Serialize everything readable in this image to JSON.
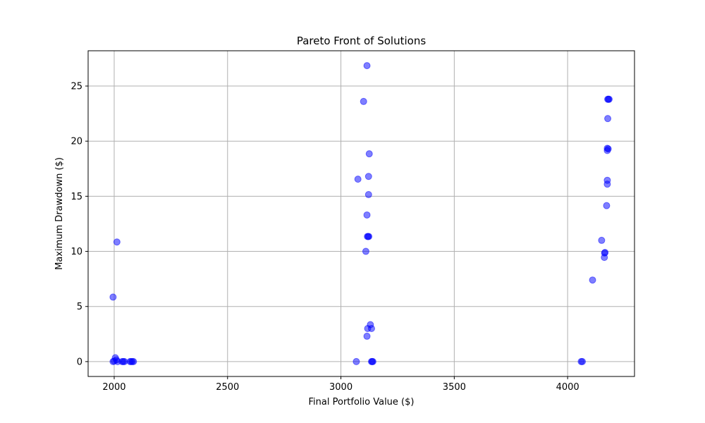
{
  "chart_data": {
    "type": "scatter",
    "title": "Pareto Front of Solutions",
    "xlabel": "Final Portfolio Value ($)",
    "ylabel": "Maximum Drawdown ($)",
    "xlim": [
      1885,
      4295
    ],
    "ylim": [
      -1.35,
      28.2
    ],
    "xticks": [
      2000,
      2500,
      3000,
      3500,
      4000
    ],
    "yticks": [
      0,
      5,
      10,
      15,
      20,
      25
    ],
    "grid": true,
    "point_color": "#0000ff",
    "point_alpha": 0.5,
    "series": [
      {
        "points": [
          [
            1995,
            5.85
          ],
          [
            2012,
            10.85
          ],
          [
            1995,
            0.0
          ],
          [
            2000,
            0.05
          ],
          [
            2005,
            0.35
          ],
          [
            2010,
            0.15
          ],
          [
            2015,
            0.0
          ],
          [
            2035,
            0.0
          ],
          [
            2040,
            0.0
          ],
          [
            2045,
            0.0
          ],
          [
            2070,
            0.0
          ],
          [
            2075,
            0.0
          ],
          [
            2080,
            0.0
          ],
          [
            2085,
            0.0
          ],
          [
            3115,
            26.85
          ],
          [
            3100,
            23.6
          ],
          [
            3125,
            18.85
          ],
          [
            3075,
            16.55
          ],
          [
            3122,
            16.8
          ],
          [
            3122,
            15.15
          ],
          [
            3115,
            13.3
          ],
          [
            3117,
            11.35
          ],
          [
            3120,
            11.35
          ],
          [
            3123,
            11.35
          ],
          [
            3110,
            10.0
          ],
          [
            3130,
            3.35
          ],
          [
            3118,
            3.0
          ],
          [
            3135,
            3.0
          ],
          [
            3115,
            2.3
          ],
          [
            3068,
            0.0
          ],
          [
            3135,
            0.0
          ],
          [
            3138,
            0.0
          ],
          [
            3141,
            0.0
          ],
          [
            4177,
            23.8
          ],
          [
            4180,
            23.8
          ],
          [
            4183,
            23.8
          ],
          [
            4177,
            22.05
          ],
          [
            4175,
            19.35
          ],
          [
            4179,
            19.3
          ],
          [
            4175,
            19.15
          ],
          [
            4175,
            16.45
          ],
          [
            4175,
            16.1
          ],
          [
            4172,
            14.15
          ],
          [
            4150,
            11.0
          ],
          [
            4165,
            9.9
          ],
          [
            4163,
            9.85
          ],
          [
            4162,
            9.45
          ],
          [
            4110,
            7.4
          ],
          [
            4060,
            0.0
          ],
          [
            4065,
            0.0
          ]
        ]
      }
    ]
  }
}
